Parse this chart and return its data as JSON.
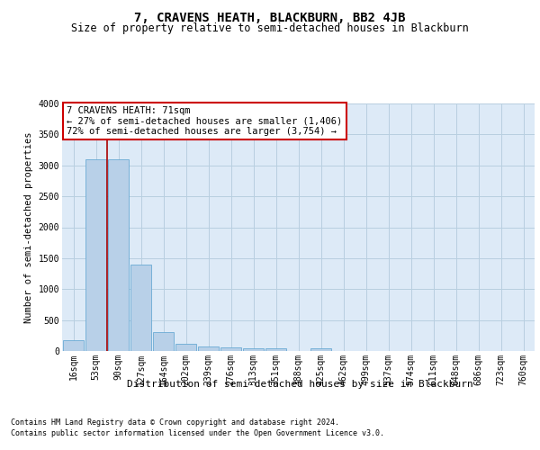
{
  "title": "7, CRAVENS HEATH, BLACKBURN, BB2 4JB",
  "subtitle": "Size of property relative to semi-detached houses in Blackburn",
  "xlabel": "Distribution of semi-detached houses by size in Blackburn",
  "ylabel": "Number of semi-detached properties",
  "categories": [
    "16sqm",
    "53sqm",
    "90sqm",
    "127sqm",
    "164sqm",
    "202sqm",
    "239sqm",
    "276sqm",
    "313sqm",
    "351sqm",
    "388sqm",
    "425sqm",
    "462sqm",
    "499sqm",
    "537sqm",
    "574sqm",
    "611sqm",
    "648sqm",
    "686sqm",
    "723sqm",
    "760sqm"
  ],
  "values": [
    175,
    3100,
    3100,
    1400,
    300,
    120,
    70,
    60,
    50,
    50,
    5,
    50,
    5,
    5,
    5,
    5,
    5,
    5,
    5,
    5,
    5
  ],
  "bar_color": "#b8d0e8",
  "bar_edge_color": "#6aaad4",
  "vline_x": 1.5,
  "vline_color": "#aa0000",
  "annotation_text": "7 CRAVENS HEATH: 71sqm\n← 27% of semi-detached houses are smaller (1,406)\n72% of semi-detached houses are larger (3,754) →",
  "annotation_box_color": "#ffffff",
  "annotation_box_edge_color": "#cc0000",
  "footer_line1": "Contains HM Land Registry data © Crown copyright and database right 2024.",
  "footer_line2": "Contains public sector information licensed under the Open Government Licence v3.0.",
  "background_color": "#ffffff",
  "plot_background_color": "#ddeaf7",
  "grid_color": "#b8cfe0",
  "ylim": [
    0,
    4000
  ],
  "yticks": [
    0,
    500,
    1000,
    1500,
    2000,
    2500,
    3000,
    3500,
    4000
  ],
  "title_fontsize": 10,
  "subtitle_fontsize": 8.5,
  "tick_fontsize": 7,
  "ylabel_fontsize": 7.5,
  "xlabel_fontsize": 8,
  "footer_fontsize": 6,
  "annot_fontsize": 7.5
}
